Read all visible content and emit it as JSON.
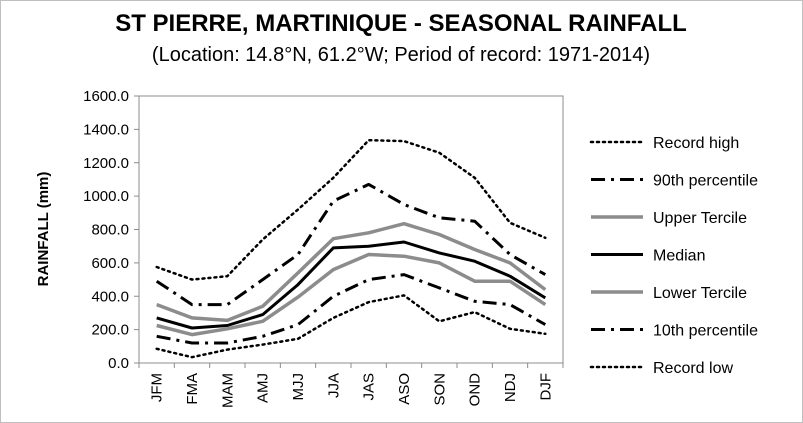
{
  "chart_data": {
    "type": "line",
    "title": "ST PIERRE, MARTINIQUE - SEASONAL RAINFALL",
    "subtitle": "(Location: 14.8°N, 61.2°W; Period of record: 1971-2014)",
    "xlabel": "",
    "ylabel": "RAINFALL (mm)",
    "ylim": [
      0,
      1600
    ],
    "yticks": [
      "0.0",
      "200.0",
      "400.0",
      "600.0",
      "800.0",
      "1000.0",
      "1200.0",
      "1400.0",
      "1600.0"
    ],
    "ytick_values": [
      0,
      200,
      400,
      600,
      800,
      1000,
      1200,
      1400,
      1600
    ],
    "categories": [
      "JFM",
      "FMA",
      "MAM",
      "AMJ",
      "MJJ",
      "JJA",
      "JAS",
      "ASO",
      "SON",
      "OND",
      "NDJ",
      "DJF"
    ],
    "grid": false,
    "legend_position": "right",
    "series": [
      {
        "name": "Record high",
        "style": "dotted",
        "color": "#000000",
        "values": [
          575,
          500,
          520,
          740,
          920,
          1110,
          1335,
          1330,
          1260,
          1110,
          840,
          750
        ]
      },
      {
        "name": "90th percentile",
        "style": "dashdot",
        "color": "#000000",
        "values": [
          490,
          350,
          350,
          500,
          650,
          970,
          1070,
          950,
          870,
          850,
          650,
          530
        ]
      },
      {
        "name": "Upper Tercile",
        "style": "solid",
        "color": "#8c8c8c",
        "values": [
          350,
          270,
          255,
          340,
          540,
          745,
          780,
          835,
          770,
          680,
          600,
          440
        ]
      },
      {
        "name": "Median",
        "style": "solid",
        "color": "#000000",
        "values": [
          270,
          210,
          225,
          290,
          470,
          690,
          700,
          725,
          660,
          610,
          520,
          390
        ]
      },
      {
        "name": "Lower Tercile",
        "style": "solid",
        "color": "#8c8c8c",
        "values": [
          225,
          170,
          205,
          250,
          395,
          560,
          650,
          640,
          600,
          490,
          490,
          350
        ]
      },
      {
        "name": "10th percentile",
        "style": "dashdot",
        "color": "#000000",
        "values": [
          160,
          120,
          120,
          160,
          230,
          400,
          500,
          530,
          450,
          370,
          350,
          230
        ]
      },
      {
        "name": "Record low",
        "style": "dotted",
        "color": "#000000",
        "values": [
          85,
          35,
          80,
          110,
          145,
          270,
          365,
          405,
          250,
          305,
          205,
          175
        ]
      }
    ]
  }
}
